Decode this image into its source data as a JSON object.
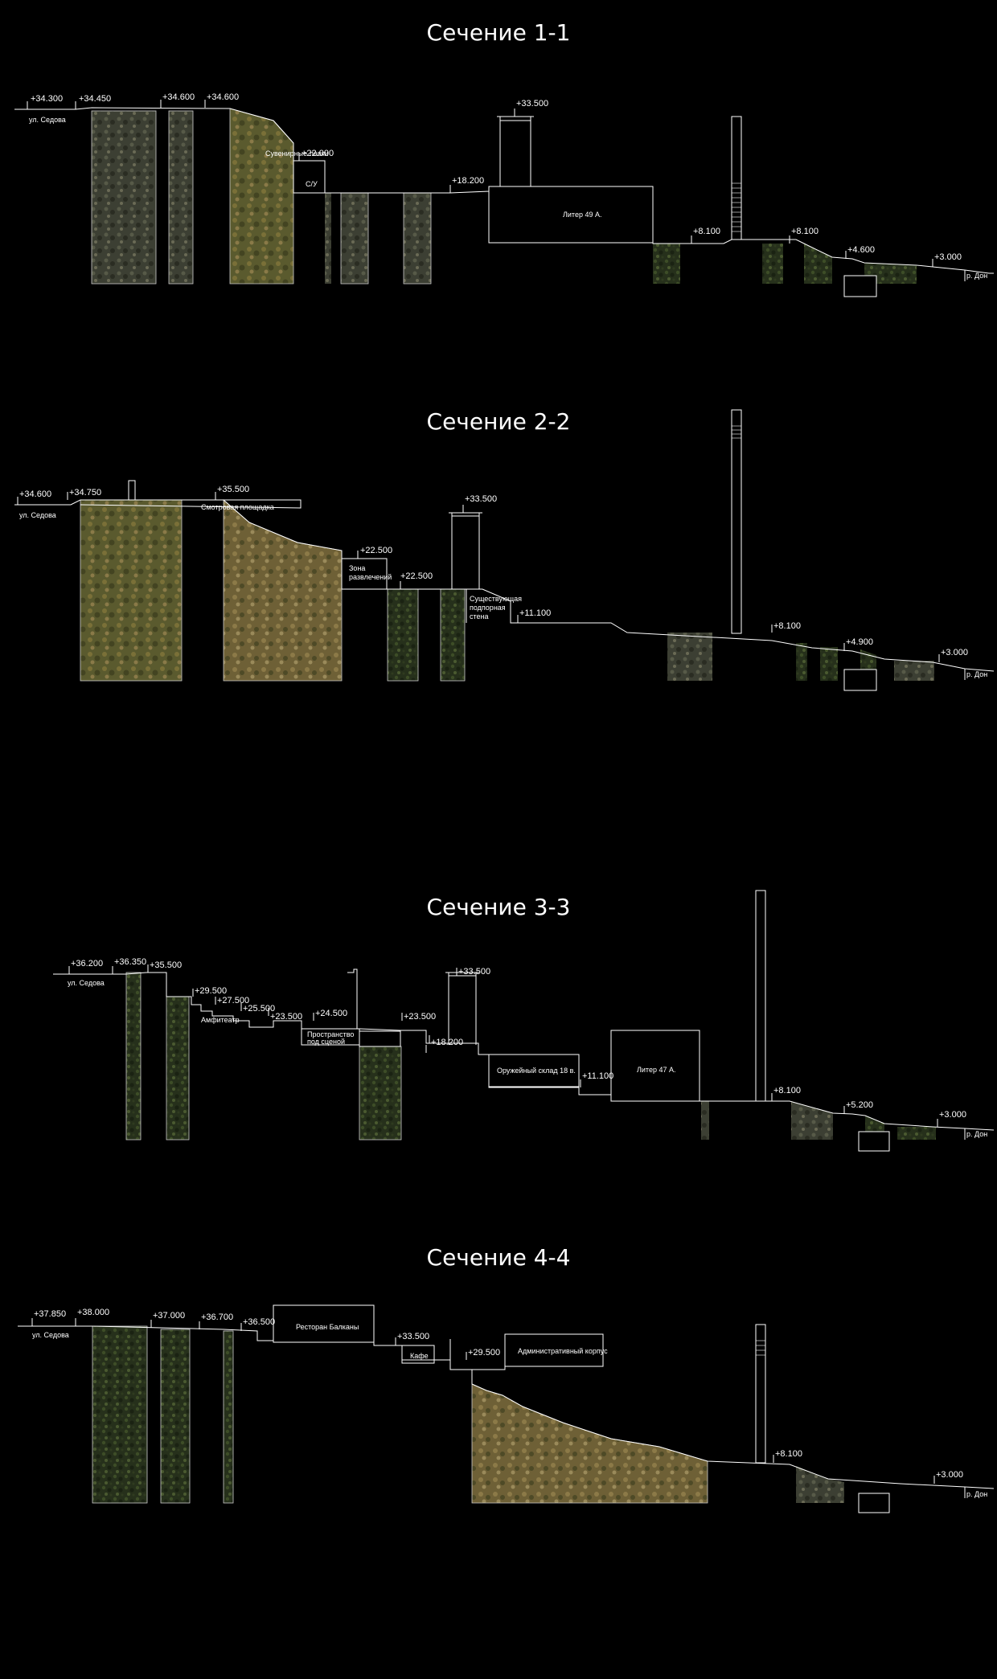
{
  "sections": [
    {
      "title": "Сечение 1-1",
      "marks": [
        "+34.300",
        "+34.450",
        "+34.600",
        "+34.600",
        "+22.000",
        "+33.500",
        "+18.200",
        "+8.100",
        "+8.100",
        "+4.600",
        "+3.000"
      ],
      "labels": {
        "street": "ул. Седова",
        "river": "р. Дон",
        "souvenir": "Сувенирные лавки",
        "wc": "С/У",
        "liter": "Литер 49 А."
      }
    },
    {
      "title": "Сечение 2-2",
      "marks": [
        "+34.600",
        "+34.750",
        "+35.500",
        "+22.500",
        "+22.500",
        "+33.500",
        "+11.100",
        "+8.100",
        "+4.900",
        "+3.000"
      ],
      "labels": {
        "street": "ул. Седова",
        "river": "р. Дон",
        "viewpoint": "Смотровая площадка",
        "fun1": "Зона",
        "fun2": "развлечений",
        "wall1": "Существующая",
        "wall2": "подпорная",
        "wall3": "стена"
      }
    },
    {
      "title": "Сечение 3-3",
      "marks": [
        "+36.200",
        "+36.350",
        "+35.500",
        "+29.500",
        "+27.500",
        "+25.500",
        "+23.500",
        "+24.500",
        "+23.500",
        "+33.500",
        "+18.200",
        "+11.100",
        "+8.100",
        "+5.200",
        "+3.000"
      ],
      "labels": {
        "street": "ул. Седова",
        "river": "р. Дон",
        "amphi": "Амфитеатр",
        "under1": "Пространство",
        "under2": "под сценой",
        "armory": "Оружейный склад 18 в.",
        "liter": "Литер 47 А."
      }
    },
    {
      "title": "Сечение 4-4",
      "marks": [
        "+37.850",
        "+38.000",
        "+37.000",
        "+36.700",
        "+36.500",
        "+33.500",
        "+29.500",
        "+8.100",
        "+3.000"
      ],
      "labels": {
        "street": "ул. Седова",
        "river": "р. Дон",
        "restaurant": "Ресторан Балканы",
        "cafe": "Кафе",
        "admin": "Административный корпус"
      }
    }
  ]
}
